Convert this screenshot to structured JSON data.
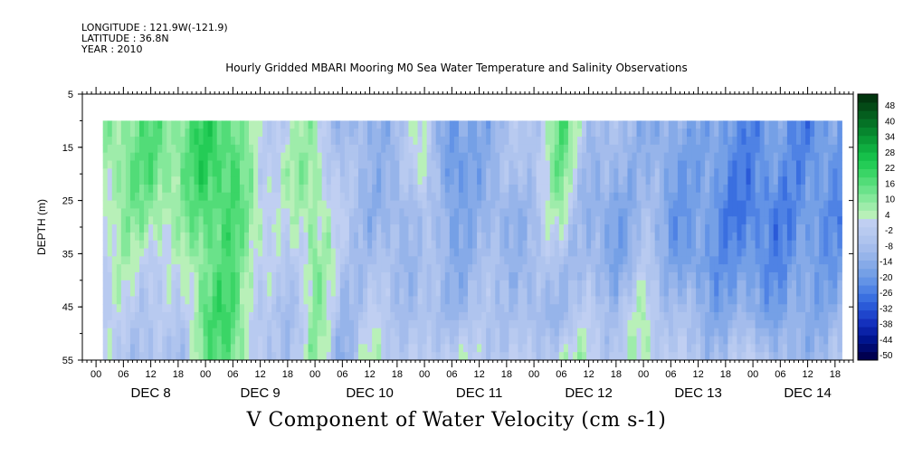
{
  "header": {
    "longitude": "LONGITUDE : 121.9W(-121.9)",
    "latitude": "LATITUDE : 36.8N",
    "year": "YEAR : 2010",
    "title": "Hourly Gridded MBARI Mooring M0 Sea Water Temperature and Salinity Observations"
  },
  "chart_data": {
    "type": "heatmap",
    "title": "Hourly Gridded MBARI Mooring M0 Sea Water Temperature and Salinity Observations",
    "xlabel": "V Component of Water Velocity (cm s-1)",
    "ylabel": "DEPTH (m)",
    "ylim": [
      55,
      5
    ],
    "yticks": [
      "5",
      "15",
      "25",
      "35",
      "45",
      "55"
    ],
    "xticks_hours": [
      "00",
      "06",
      "12",
      "18",
      "00",
      "06",
      "12",
      "18",
      "00",
      "06",
      "12",
      "18",
      "00",
      "06",
      "12",
      "18",
      "00",
      "06",
      "12",
      "18",
      "00",
      "06",
      "12",
      "18",
      "00",
      "06",
      "12",
      "18"
    ],
    "xdays": [
      "DEC  8",
      "DEC  9",
      "DEC 10",
      "DEC 11",
      "DEC 12",
      "DEC 13",
      "DEC 14"
    ],
    "data_depth_range": [
      10,
      55
    ],
    "colorbar": {
      "labels": [
        "48",
        "40",
        "34",
        "28",
        "22",
        "16",
        "10",
        "4",
        "-2",
        "-8",
        "-14",
        "-20",
        "-26",
        "-32",
        "-38",
        "-44",
        "-50"
      ],
      "levels": [
        -50,
        -47,
        -44,
        -41,
        -38,
        -35,
        -32,
        -29,
        -26,
        -23,
        -20,
        -17,
        -14,
        -11,
        -8,
        -5,
        -2,
        1,
        4,
        7,
        10,
        13,
        16,
        19,
        22,
        25,
        28,
        31,
        34,
        37,
        40,
        43,
        46,
        49
      ],
      "colors": [
        "#000050",
        "#000a70",
        "#00148e",
        "#0a22a8",
        "#1431bd",
        "#1f45cc",
        "#2a5ad8",
        "#3a6fe0",
        "#4f82e4",
        "#6393e6",
        "#75a0e6",
        "#86aae8",
        "#96b4ea",
        "#a4bcec",
        "#afc4ee",
        "#b8caf0",
        "#c0cff2",
        "#b8f0b8",
        "#9eecaa",
        "#84e89a",
        "#6ae28a",
        "#52dc78",
        "#3ad566",
        "#24cc56",
        "#16c04a",
        "#0fae40",
        "#0a9a36",
        "#07862e",
        "#057226",
        "#045e1e",
        "#034a16",
        "#02360f"
      ]
    },
    "time_columns_profile": [
      {
        "t": 0,
        "v": [
          6,
          4,
          2,
          -2,
          -6,
          -4
        ]
      },
      {
        "t": 6,
        "v": [
          8,
          10,
          6,
          2,
          -2,
          -6
        ]
      },
      {
        "t": 12,
        "v": [
          12,
          14,
          8,
          0,
          -4,
          -8
        ]
      },
      {
        "t": 18,
        "v": [
          10,
          8,
          4,
          -2,
          -6,
          -10
        ]
      },
      {
        "t": 24,
        "v": [
          18,
          20,
          16,
          12,
          14,
          10
        ]
      },
      {
        "t": 30,
        "v": [
          14,
          16,
          14,
          12,
          16,
          14
        ]
      },
      {
        "t": 36,
        "v": [
          -4,
          -2,
          4,
          2,
          -6,
          -8
        ]
      },
      {
        "t": 42,
        "v": [
          0,
          4,
          -2,
          -8,
          -10,
          -6
        ]
      },
      {
        "t": 48,
        "v": [
          4,
          6,
          8,
          10,
          8,
          6
        ]
      },
      {
        "t": 54,
        "v": [
          -12,
          -8,
          -4,
          -6,
          -10,
          -14
        ]
      },
      {
        "t": 60,
        "v": [
          -14,
          -10,
          -12,
          -8,
          -4,
          2
        ]
      },
      {
        "t": 66,
        "v": [
          -10,
          -12,
          -14,
          -10,
          -6,
          -2
        ]
      },
      {
        "t": 72,
        "v": [
          2,
          4,
          -4,
          -8,
          -10,
          -6
        ]
      },
      {
        "t": 78,
        "v": [
          -20,
          -24,
          -18,
          -14,
          -10,
          2
        ]
      },
      {
        "t": 84,
        "v": [
          -16,
          -14,
          -12,
          -10,
          -8,
          -4
        ]
      },
      {
        "t": 90,
        "v": [
          -8,
          -10,
          -14,
          -10,
          -6,
          -2
        ]
      },
      {
        "t": 96,
        "v": [
          -6,
          -4,
          -8,
          -10,
          -12,
          -6
        ]
      },
      {
        "t": 102,
        "v": [
          14,
          10,
          4,
          -6,
          -10,
          2
        ]
      },
      {
        "t": 108,
        "v": [
          -6,
          -10,
          -14,
          -12,
          -4,
          2
        ]
      },
      {
        "t": 114,
        "v": [
          -10,
          -14,
          -18,
          -16,
          -8,
          -6
        ]
      },
      {
        "t": 120,
        "v": [
          -12,
          -10,
          -8,
          -6,
          2,
          4
        ]
      },
      {
        "t": 126,
        "v": [
          -16,
          -18,
          -20,
          -14,
          -8,
          -4
        ]
      },
      {
        "t": 132,
        "v": [
          -14,
          -16,
          -18,
          -20,
          -12,
          -6
        ]
      },
      {
        "t": 138,
        "v": [
          -20,
          -22,
          -24,
          -20,
          -16,
          -10
        ]
      },
      {
        "t": 144,
        "v": [
          -22,
          -24,
          -26,
          -22,
          -14,
          2
        ]
      },
      {
        "t": 150,
        "v": [
          -18,
          -20,
          -24,
          -22,
          -18,
          -12
        ]
      },
      {
        "t": 156,
        "v": [
          -24,
          -22,
          -20,
          -18,
          -14,
          -10
        ]
      },
      {
        "t": 162,
        "v": [
          -18,
          -20,
          -22,
          -18,
          -14,
          -8
        ]
      }
    ]
  }
}
